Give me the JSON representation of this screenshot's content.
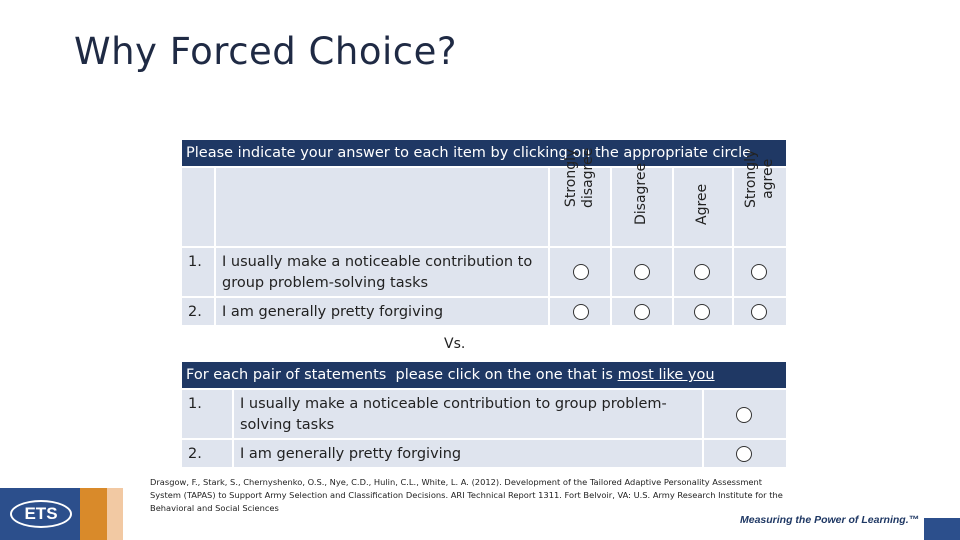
{
  "title": "Why Forced Choice?",
  "likert": {
    "header": "Please indicate your answer to each item by clicking on the appropriate circle",
    "columns": [
      {
        "line1": "Strongly",
        "line2": "disagree"
      },
      {
        "line1": "Disagree",
        "line2": ""
      },
      {
        "line1": "Agree",
        "line2": ""
      },
      {
        "line1": "Strongly",
        "line2": "agree"
      }
    ],
    "items": [
      {
        "num": "1.",
        "text1": "I usually make a noticeable contribution to",
        "text2": "group problem-solving tasks"
      },
      {
        "num": "2.",
        "text1": "I am generally pretty forgiving",
        "text2": ""
      }
    ]
  },
  "vs": "Vs.",
  "forced": {
    "header_pre": "For each pair of statements  please click on the one that is ",
    "header_underlined": "most like you",
    "items": [
      {
        "num": "1.",
        "text1": "I usually make a noticeable contribution to group problem-",
        "text2": "solving tasks"
      },
      {
        "num": "2.",
        "text1": "I am generally pretty forgiving",
        "text2": ""
      }
    ]
  },
  "reference": "Drasgow, F., Stark, S., Chernyshenko, O.S., Nye, C.D., Hulin, C.L., White, L. A. (2012). Development of the Tailored Adaptive Personality Assessment System (TAPAS) to Support Army Selection and Classification Decisions. ARI Technical Report 1311. Fort Belvoir, VA: U.S. Army Research Institute for the Behavioral and Social Sciences",
  "footer": {
    "logo_text": "ETS",
    "tagline": "Measuring the Power of Learning.™",
    "colors": {
      "navy": "#1f3864",
      "logo_blue": "#2c4f8c",
      "orange": "#d98a2a"
    }
  }
}
